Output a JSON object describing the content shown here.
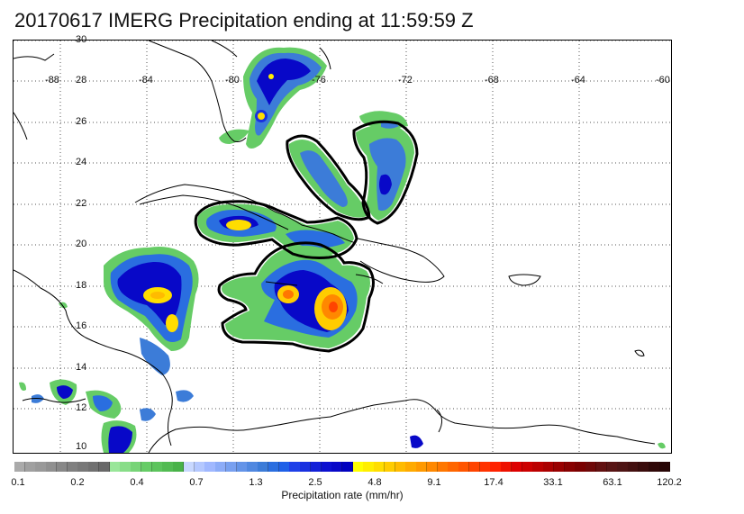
{
  "title": "20170617 IMERG Precipitation ending at 11:59:59 Z",
  "map": {
    "lon_labels": [
      "-88",
      "-84",
      "-80",
      "-76",
      "-72",
      "-68",
      "-64",
      "-60"
    ],
    "lat_labels": [
      "30",
      "28",
      "26",
      "24",
      "22",
      "20",
      "18",
      "16",
      "14",
      "12",
      "10"
    ],
    "lon_range": [
      -89.5,
      -60
    ],
    "lat_range": [
      9.5,
      30
    ],
    "projection": "cylindrical",
    "gridlines": true,
    "colors": {
      "land_outline": "#000000",
      "grid": "#555555",
      "highlight_contour": "#000000"
    }
  },
  "colorbar": {
    "label": "Precipitation rate (mm/hr)",
    "tick_labels": [
      "0.1",
      "0.2",
      "0.4",
      "0.7",
      "1.3",
      "2.5",
      "4.8",
      "9.1",
      "17.4",
      "33.1",
      "63.1",
      "120.2"
    ],
    "colors": [
      "#aaaaaa",
      "#a0a0a0",
      "#999999",
      "#909090",
      "#888888",
      "#808080",
      "#787878",
      "#707070",
      "#686868",
      "#99e699",
      "#88dd88",
      "#77d477",
      "#66cc66",
      "#5cc45c",
      "#52bb52",
      "#48b248",
      "#c8d8ff",
      "#b4c8ff",
      "#a0b8ff",
      "#8cacf8",
      "#78a0f0",
      "#6494e8",
      "#5088e0",
      "#3c7cd8",
      "#2a6ee0",
      "#1e60e8",
      "#1e40e8",
      "#1830e0",
      "#1220d8",
      "#0c10d0",
      "#0808c8",
      "#0000c0",
      "#ffff00",
      "#ffee00",
      "#ffdd00",
      "#ffcc00",
      "#ffbb00",
      "#ffaa00",
      "#ff9900",
      "#ff8800",
      "#ff7700",
      "#ff6600",
      "#ff5500",
      "#ff4400",
      "#ff3300",
      "#ff2200",
      "#ee1100",
      "#dd0000",
      "#cc0000",
      "#bb0000",
      "#aa0000",
      "#990000",
      "#880000",
      "#7a0000",
      "#6e0808",
      "#621010",
      "#581414",
      "#4e1414",
      "#441010",
      "#3a0c0c",
      "#300808",
      "#280606"
    ]
  }
}
